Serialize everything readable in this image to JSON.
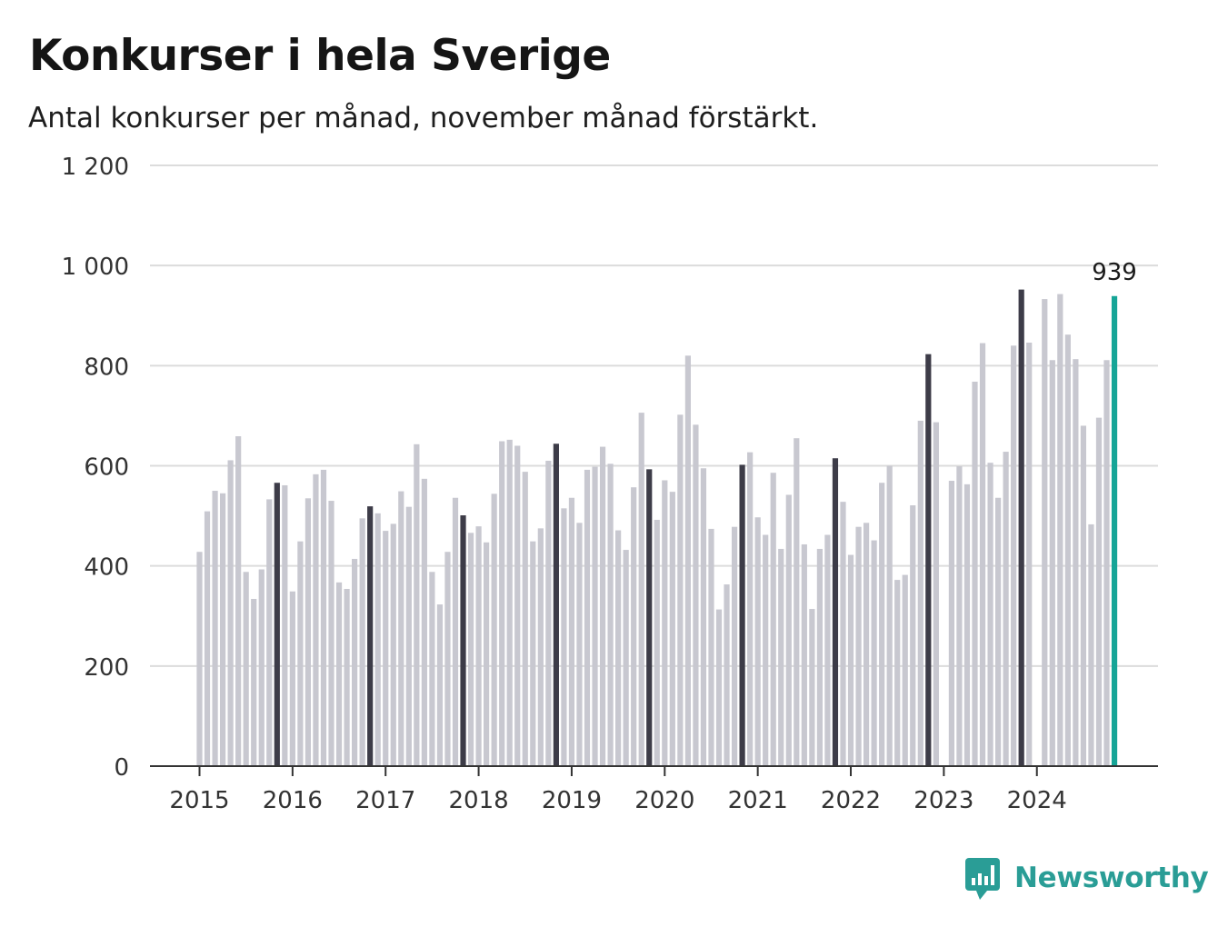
{
  "title": "Konkurser i hela Sverige",
  "subtitle": "Antal konkurser per månad, november månad förstärkt.",
  "brand": {
    "name": "Newsworthy"
  },
  "colors": {
    "bar": "#c8c8d0",
    "highlight": "#3d3c48",
    "latest": "#16a597",
    "grid": "#dcdcdc",
    "axis": "#333333",
    "brand": "#2a9d96"
  },
  "chart_data": {
    "type": "bar",
    "title": "Konkurser i hela Sverige",
    "subtitle": "Antal konkurser per månad, november månad förstärkt.",
    "ylim": [
      0,
      1200
    ],
    "y_ticks": [
      {
        "value": 0,
        "label": "0"
      },
      {
        "value": 200,
        "label": "200"
      },
      {
        "value": 400,
        "label": "400"
      },
      {
        "value": 600,
        "label": "600"
      },
      {
        "value": 800,
        "label": "800"
      },
      {
        "value": 1000,
        "label": "1 000"
      },
      {
        "value": 1200,
        "label": "1 200"
      }
    ],
    "x_ticks": [
      "2015",
      "2016",
      "2017",
      "2018",
      "2019",
      "2020",
      "2021",
      "2022",
      "2023",
      "2024"
    ],
    "start": "2015-01",
    "grid": true,
    "highlight_month": "november",
    "annotation": {
      "month": "2024-11",
      "label": "939"
    },
    "values": [
      428,
      509,
      550,
      545,
      611,
      659,
      388,
      334,
      393,
      533,
      566,
      561,
      349,
      449,
      535,
      583,
      592,
      530,
      367,
      354,
      414,
      495,
      519,
      505,
      470,
      484,
      549,
      518,
      643,
      574,
      388,
      323,
      428,
      536,
      501,
      466,
      479,
      447,
      544,
      649,
      652,
      640,
      588,
      449,
      475,
      610,
      644,
      515,
      536,
      486,
      592,
      598,
      638,
      604,
      471,
      432,
      557,
      706,
      593,
      492,
      571,
      548,
      702,
      820,
      682,
      595,
      474,
      313,
      363,
      478,
      602,
      627,
      497,
      462,
      586,
      434,
      542,
      655,
      443,
      314,
      434,
      462,
      615,
      528,
      422,
      478,
      486,
      451,
      566,
      600,
      372,
      382,
      521,
      690,
      823,
      687,
      0,
      570,
      599,
      563,
      768,
      845,
      606,
      536,
      628,
      840,
      952,
      846,
      0,
      933,
      811,
      943,
      862,
      813,
      680,
      483,
      696,
      811,
      939
    ]
  }
}
